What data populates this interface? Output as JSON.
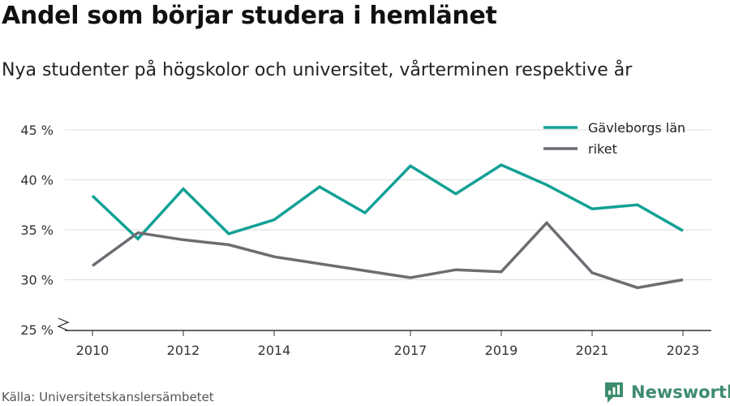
{
  "header": {
    "title": "Andel som börjar studera i hemlänet",
    "subtitle": "Nya studenter på högskolor och universitet, vårterminen respektive år"
  },
  "footer": {
    "source": "Källa: Universitetskanslersämbetet",
    "brand": "Newsworthy"
  },
  "colors": {
    "gavleborg": "#12a196",
    "riket": "#6e6c72",
    "grid": "#dddddd",
    "brand": "#3d8c6e"
  },
  "chart_data": {
    "type": "line",
    "title": "Andel som börjar studera i hemlänet",
    "subtitle": "Nya studenter på högskolor och universitet, vårterminen respektive år",
    "x": [
      2010,
      2011,
      2012,
      2013,
      2014,
      2015,
      2016,
      2017,
      2018,
      2019,
      2020,
      2021,
      2022,
      2023
    ],
    "x_tick_values": [
      2010,
      2012,
      2014,
      2017,
      2019,
      2021,
      2023
    ],
    "x_tick_labels": [
      "2010",
      "2012",
      "2014",
      "2017",
      "2019",
      "2021",
      "2023"
    ],
    "ylim": [
      25,
      45
    ],
    "y_tick_values": [
      25,
      30,
      35,
      40,
      45
    ],
    "y_tick_labels": [
      "25 %",
      "30 %",
      "35 %",
      "40 %",
      "45 %"
    ],
    "y_axis_break": true,
    "grid": "horizontal",
    "legend_position": "top-right",
    "series": [
      {
        "name": "Gävleborgs län",
        "color": "#12a196",
        "values": [
          38.4,
          34.1,
          39.1,
          34.6,
          36.0,
          39.3,
          36.7,
          41.4,
          38.6,
          41.5,
          39.5,
          37.1,
          37.5,
          34.9
        ]
      },
      {
        "name": "riket",
        "color": "#6e6c72",
        "values": [
          31.4,
          34.7,
          34.0,
          33.5,
          32.3,
          31.6,
          30.9,
          30.2,
          31.0,
          30.8,
          35.7,
          30.7,
          29.2,
          30.0
        ]
      }
    ]
  }
}
